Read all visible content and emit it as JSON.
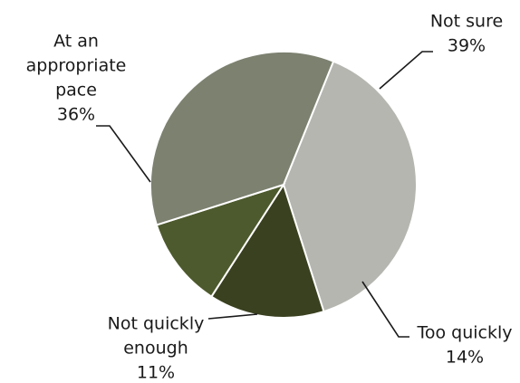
{
  "chart_data": {
    "type": "pie",
    "slices": [
      {
        "label_lines": [
          "Not sure"
        ],
        "value": 39,
        "value_label": "39%",
        "color": "#b5b6b0"
      },
      {
        "label_lines": [
          "Too quickly"
        ],
        "value": 14,
        "value_label": "14%",
        "color": "#3a4120"
      },
      {
        "label_lines": [
          "Not quickly",
          "enough"
        ],
        "value": 11,
        "value_label": "11%",
        "color": "#4d5a2d"
      },
      {
        "label_lines": [
          "At an",
          "appropriate",
          "pace"
        ],
        "value": 36,
        "value_label": "36%",
        "color": "#7c8170"
      }
    ],
    "start_angle_deg": 22,
    "direction": "clockwise",
    "legend": "none"
  }
}
